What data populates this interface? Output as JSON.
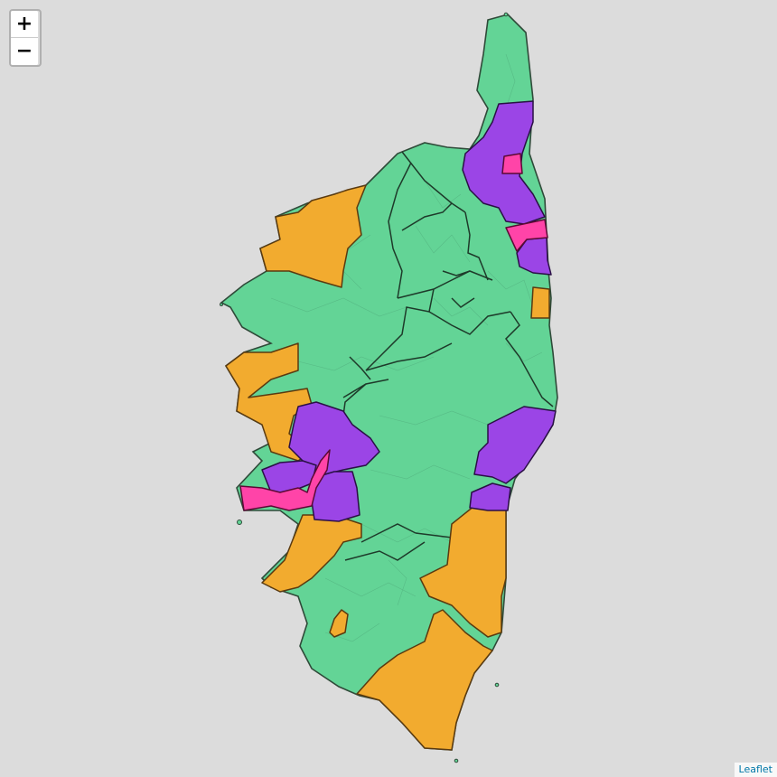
{
  "map": {
    "region_colors": {
      "green": "#63d496",
      "orange": "#f2ab2f",
      "purple": "#9b45e6",
      "pink": "#ff44a8"
    },
    "border_color": "#1e3a2a",
    "background_color": "#dcdcdc"
  },
  "controls": {
    "zoom_in_label": "+",
    "zoom_out_label": "−"
  },
  "attribution": {
    "link_text": "Leaflet"
  }
}
